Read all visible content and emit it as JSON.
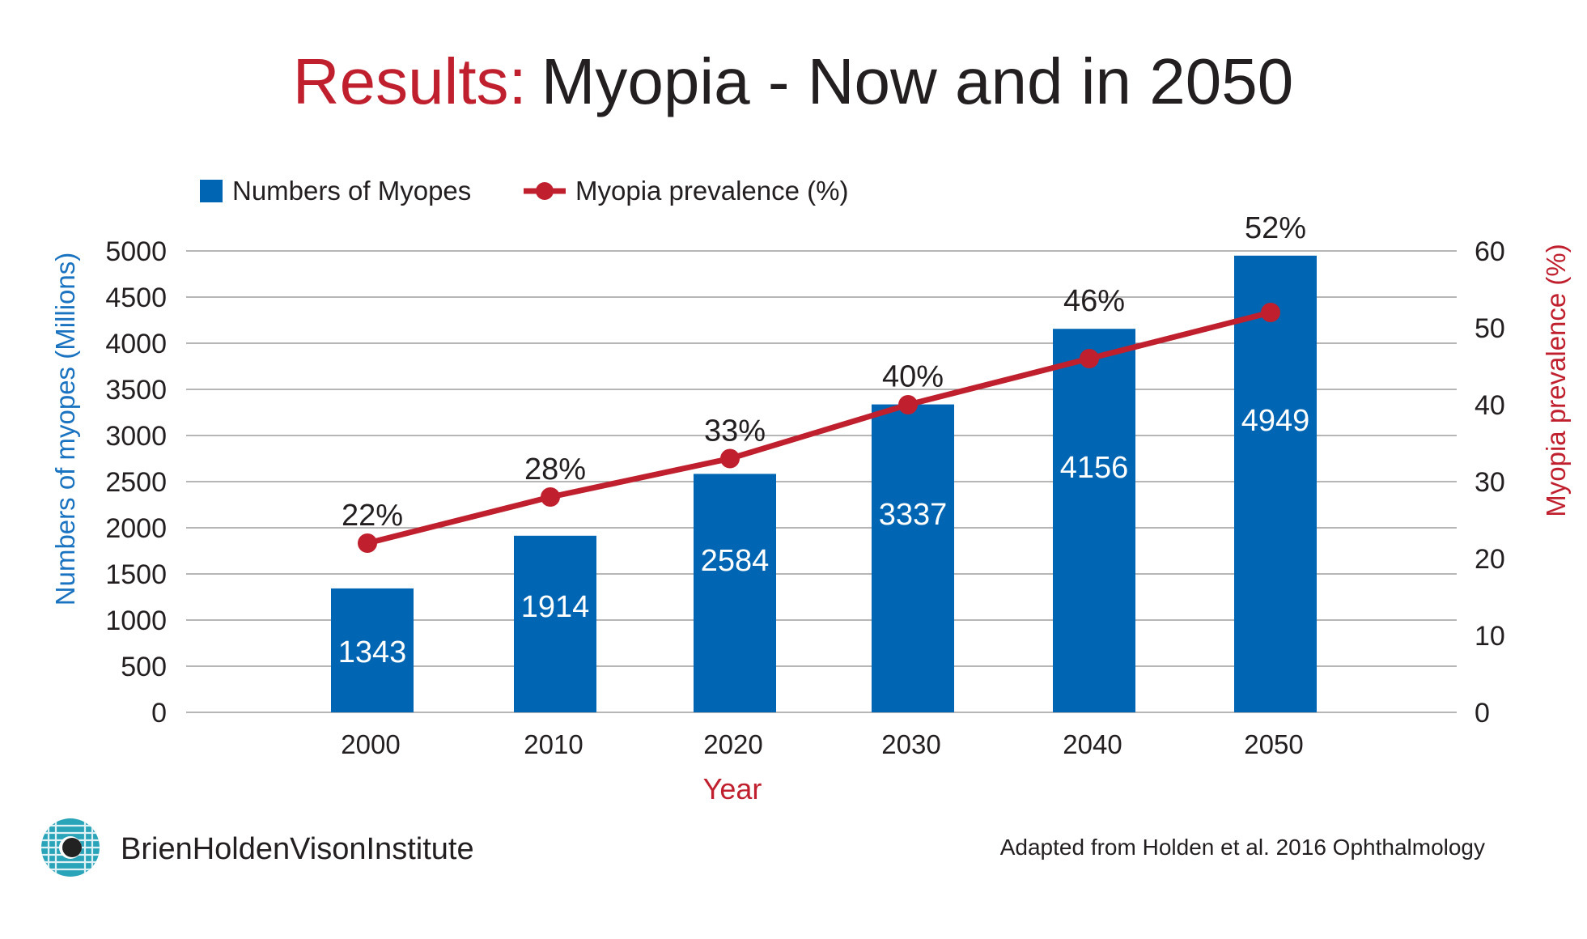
{
  "colors": {
    "bar": "#0066b3",
    "line": "#c0202e",
    "accent": "#c0202e",
    "left_axis": "#1a73c0",
    "text": "#231f20",
    "logo": "#2aa4b8"
  },
  "header": {
    "title_accent": "Results:",
    "title_rest": "Myopia - Now and in 2050"
  },
  "legend": {
    "bars": "Numbers of Myopes",
    "line": "Myopia prevalence (%)"
  },
  "chart_data": {
    "type": "bar",
    "title": "Results: Myopia - Now and in 2050",
    "categories": [
      "2000",
      "2010",
      "2020",
      "2030",
      "2040",
      "2050"
    ],
    "xlabel": "Year",
    "ylabel": "Numbers of  myopes (Millions)",
    "y2label": "Myopia prevalence (%)",
    "ylim": [
      0,
      5000
    ],
    "y2lim": [
      0,
      60
    ],
    "yticks": [
      "0",
      "500",
      "1000",
      "1500",
      "2000",
      "2500",
      "3000",
      "3500",
      "4000",
      "4500",
      "5000"
    ],
    "y2ticks": [
      "0",
      "10",
      "20",
      "30",
      "40",
      "50",
      "60"
    ],
    "grid": true,
    "legend_position": "top-left",
    "series": [
      {
        "name": "Numbers of Myopes",
        "type": "bar",
        "axis": "left",
        "values": [
          1343,
          1914,
          2584,
          3337,
          4156,
          4949
        ],
        "labels": [
          "1343",
          "1914",
          "2584",
          "3337",
          "4156",
          "4949"
        ]
      },
      {
        "name": "Myopia prevalence (%)",
        "type": "line",
        "axis": "right",
        "values": [
          22,
          28,
          33,
          40,
          46,
          52
        ],
        "labels": [
          "22%",
          "28%",
          "33%",
          "40%",
          "46%",
          "52%"
        ]
      }
    ]
  },
  "footer": {
    "brand": "BrienHoldenVisonInstitute",
    "source": "Adapted from Holden et al. 2016 Ophthalmology"
  }
}
